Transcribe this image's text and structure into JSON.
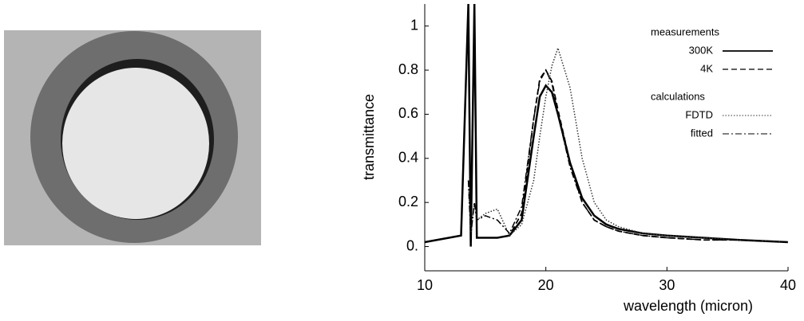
{
  "chart_data": {
    "type": "line",
    "x_label": "wavelength (micron)",
    "y_label": "transmittance",
    "x": [
      10,
      11,
      12,
      13,
      13.6,
      13.8,
      14.1,
      14.3,
      15,
      16,
      17,
      18,
      19,
      19.5,
      20,
      20.5,
      21,
      22,
      23,
      24,
      25,
      26,
      28,
      30,
      33,
      36,
      40
    ],
    "series": [
      {
        "name": "300K",
        "color": "#000000",
        "dash": "solid",
        "values": [
          0.02,
          0.03,
          0.04,
          0.05,
          1.1,
          0.0,
          1.1,
          0.04,
          0.04,
          0.04,
          0.05,
          0.12,
          0.5,
          0.68,
          0.73,
          0.7,
          0.6,
          0.38,
          0.22,
          0.14,
          0.1,
          0.08,
          0.06,
          0.05,
          0.04,
          0.03,
          0.02
        ]
      },
      {
        "name": "4K",
        "color": "#000000",
        "dash": "dashed",
        "values": [
          0.02,
          0.03,
          0.04,
          0.05,
          1.1,
          0.0,
          1.1,
          0.04,
          0.04,
          0.04,
          0.05,
          0.15,
          0.58,
          0.76,
          0.8,
          0.75,
          0.62,
          0.38,
          0.2,
          0.12,
          0.09,
          0.07,
          0.05,
          0.04,
          0.03,
          0.03,
          0.02
        ]
      },
      {
        "name": "FDTD",
        "color": "#333333",
        "dash": "dotted",
        "values": [
          null,
          null,
          null,
          null,
          0.3,
          0.05,
          0.2,
          0.12,
          0.15,
          0.17,
          0.05,
          0.1,
          0.3,
          0.5,
          0.68,
          0.82,
          0.9,
          0.72,
          0.4,
          0.2,
          0.12,
          0.09,
          0.06,
          0.05,
          0.04,
          0.03,
          0.02
        ]
      },
      {
        "name": "fitted",
        "color": "#000000",
        "dash": "dashdot",
        "values": [
          null,
          null,
          null,
          null,
          0.3,
          0.05,
          0.2,
          0.12,
          0.14,
          0.12,
          0.06,
          0.18,
          0.58,
          0.75,
          0.8,
          0.74,
          0.6,
          0.36,
          0.2,
          0.12,
          0.09,
          0.07,
          0.05,
          0.04,
          0.03,
          0.03,
          0.02
        ]
      }
    ],
    "legend_titles": [
      "measurements",
      "calculations"
    ],
    "xlim": [
      10,
      40
    ],
    "xticks": [
      10,
      20,
      30,
      40
    ],
    "ylim": [
      -0.11,
      1.1
    ],
    "yticks": [
      {
        "value": 0,
        "label": "0."
      },
      0.2,
      0.4,
      0.6,
      0.8,
      1
    ],
    "grid": false
  }
}
